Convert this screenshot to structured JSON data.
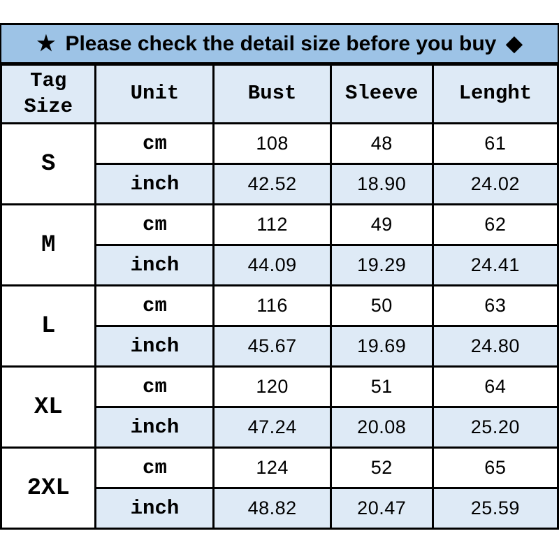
{
  "banner": {
    "star_icon": "★",
    "text": "Please check the detail size before you buy",
    "diamond_icon": "◆"
  },
  "size_chart": {
    "columns": [
      "Tag Size",
      "Unit",
      "Bust",
      "Sleeve",
      "Lenght"
    ],
    "unit_labels": [
      "cm",
      "inch"
    ],
    "rows": [
      {
        "size": "S",
        "cm": {
          "bust": "108",
          "sleeve": "48",
          "lenght": "61"
        },
        "inch": {
          "bust": "42.52",
          "sleeve": "18.90",
          "lenght": "24.02"
        }
      },
      {
        "size": "M",
        "cm": {
          "bust": "112",
          "sleeve": "49",
          "lenght": "62"
        },
        "inch": {
          "bust": "44.09",
          "sleeve": "19.29",
          "lenght": "24.41"
        }
      },
      {
        "size": "L",
        "cm": {
          "bust": "116",
          "sleeve": "50",
          "lenght": "63"
        },
        "inch": {
          "bust": "45.67",
          "sleeve": "19.69",
          "lenght": "24.80"
        }
      },
      {
        "size": "XL",
        "cm": {
          "bust": "120",
          "sleeve": "51",
          "lenght": "64"
        },
        "inch": {
          "bust": "47.24",
          "sleeve": "20.08",
          "lenght": "25.20"
        }
      },
      {
        "size": "2XL",
        "cm": {
          "bust": "124",
          "sleeve": "52",
          "lenght": "65"
        },
        "inch": {
          "bust": "48.82",
          "sleeve": "20.47",
          "lenght": "25.59"
        }
      }
    ]
  },
  "chart_data": {
    "type": "table",
    "title": "Please check the detail size before you buy",
    "columns": [
      "Tag Size",
      "Unit",
      "Bust",
      "Sleeve",
      "Lenght"
    ],
    "rows": [
      [
        "S",
        "cm",
        108,
        48,
        61
      ],
      [
        "S",
        "inch",
        42.52,
        18.9,
        24.02
      ],
      [
        "M",
        "cm",
        112,
        49,
        62
      ],
      [
        "M",
        "inch",
        44.09,
        19.29,
        24.41
      ],
      [
        "L",
        "cm",
        116,
        50,
        63
      ],
      [
        "L",
        "inch",
        45.67,
        19.69,
        24.8
      ],
      [
        "XL",
        "cm",
        120,
        51,
        64
      ],
      [
        "XL",
        "inch",
        47.24,
        20.08,
        25.2
      ],
      [
        "2XL",
        "cm",
        124,
        52,
        65
      ],
      [
        "2XL",
        "inch",
        48.82,
        20.47,
        25.59
      ]
    ]
  },
  "colors": {
    "banner_bg": "#9DC3E6",
    "cell_light_blue": "#DEEAF6",
    "border": "#000000",
    "text": "#000000"
  }
}
